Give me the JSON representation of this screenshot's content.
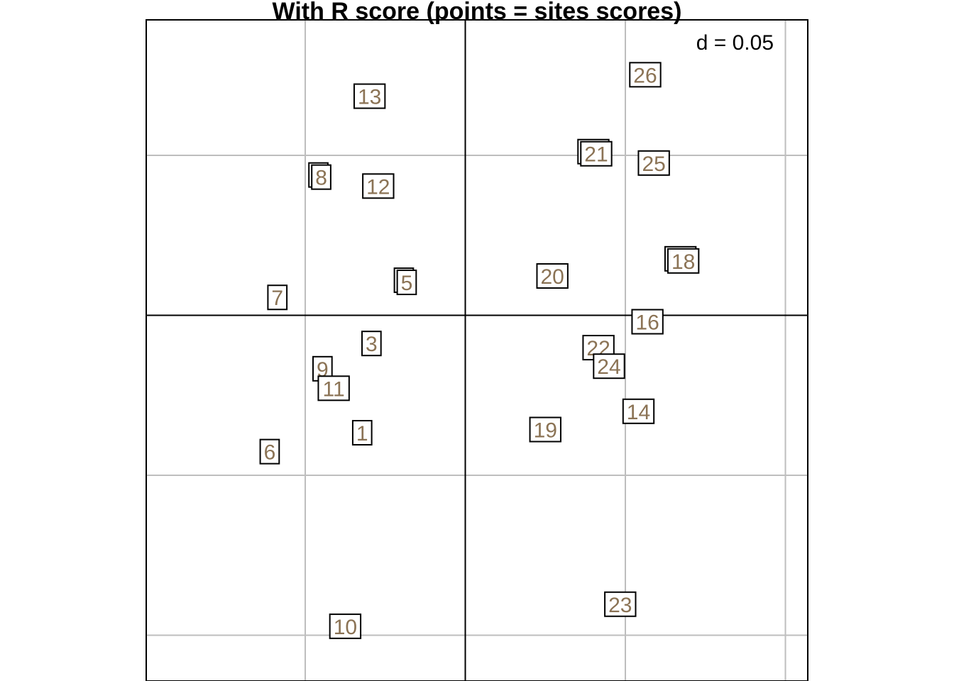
{
  "chart_data": {
    "type": "scatter",
    "title": "With R score (points = sites scores)",
    "subtitle": "",
    "xlabel": "",
    "ylabel": "",
    "grid": true,
    "grid_step": 0.05,
    "axes_through_origin": true,
    "xlim": [
      -0.1,
      0.1
    ],
    "ylim": [
      -0.1,
      0.1
    ],
    "d_scale_label": "d = 0.05",
    "label_color": "#8B7355",
    "box_color": "#000000",
    "grid_color": "#BEBEBE",
    "axis_color": "#000000",
    "points": [
      {
        "label": "13",
        "x": -0.0299,
        "y": 0.0685,
        "stacked": false
      },
      {
        "label": "26",
        "x": 0.0562,
        "y": 0.0752,
        "stacked": false
      },
      {
        "label": "8",
        "x": -0.045,
        "y": 0.0432,
        "stacked": true
      },
      {
        "label": "12",
        "x": -0.0272,
        "y": 0.0404,
        "stacked": false
      },
      {
        "label": "21",
        "x": 0.0409,
        "y": 0.0505,
        "stacked": true
      },
      {
        "label": "25",
        "x": 0.0589,
        "y": 0.0476,
        "stacked": false
      },
      {
        "label": "7",
        "x": -0.0587,
        "y": 0.0056,
        "stacked": false
      },
      {
        "label": "5",
        "x": -0.0183,
        "y": 0.0103,
        "stacked": true
      },
      {
        "label": "20",
        "x": 0.0272,
        "y": 0.0123,
        "stacked": false
      },
      {
        "label": "18",
        "x": 0.0681,
        "y": 0.017,
        "stacked": true
      },
      {
        "label": "16",
        "x": 0.0569,
        "y": -0.002,
        "stacked": false
      },
      {
        "label": "3",
        "x": -0.0293,
        "y": -0.0088,
        "stacked": false
      },
      {
        "label": "22",
        "x": 0.0416,
        "y": -0.0101,
        "stacked": false
      },
      {
        "label": "24",
        "x": 0.0449,
        "y": -0.0159,
        "stacked": false
      },
      {
        "label": "9",
        "x": -0.0446,
        "y": -0.0167,
        "stacked": false
      },
      {
        "label": "11",
        "x": -0.0411,
        "y": -0.0228,
        "stacked": false
      },
      {
        "label": "14",
        "x": 0.0541,
        "y": -0.03,
        "stacked": false
      },
      {
        "label": "1",
        "x": -0.0322,
        "y": -0.0367,
        "stacked": false
      },
      {
        "label": "19",
        "x": 0.025,
        "y": -0.0357,
        "stacked": false
      },
      {
        "label": "6",
        "x": -0.0611,
        "y": -0.0426,
        "stacked": false
      },
      {
        "label": "23",
        "x": 0.0484,
        "y": -0.0903,
        "stacked": false
      },
      {
        "label": "10",
        "x": -0.0375,
        "y": -0.0972,
        "stacked": false
      }
    ]
  }
}
